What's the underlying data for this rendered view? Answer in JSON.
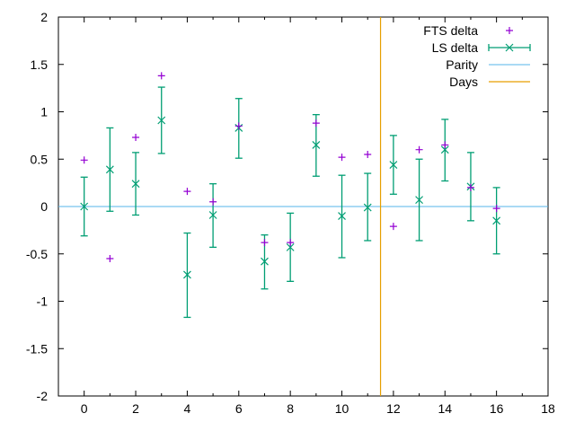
{
  "chart_data": {
    "type": "scatter",
    "title": "",
    "xlabel": "",
    "ylabel": "",
    "xlim": [
      -1,
      18
    ],
    "ylim": [
      -2,
      2
    ],
    "xticks": [
      0,
      2,
      4,
      6,
      8,
      10,
      12,
      14,
      16,
      18
    ],
    "yticks": [
      -2,
      -1.5,
      -1,
      -0.5,
      0,
      0.5,
      1,
      1.5,
      2
    ],
    "grid": false,
    "legend_position": "top-right",
    "series": [
      {
        "name": "FTS delta",
        "style": "points",
        "marker": "plus",
        "color": "#9400d3",
        "x": [
          0,
          1,
          2,
          3,
          4,
          5,
          6,
          7,
          8,
          9,
          10,
          11,
          12,
          13,
          14,
          15,
          16
        ],
        "y": [
          0.49,
          -0.55,
          0.73,
          1.38,
          0.16,
          0.05,
          0.85,
          -0.38,
          -0.38,
          0.88,
          0.52,
          0.55,
          -0.21,
          0.6,
          0.65,
          0.2,
          -0.02
        ]
      },
      {
        "name": "LS delta",
        "style": "errorbars",
        "marker": "cross",
        "color": "#009e73",
        "x": [
          0,
          1,
          2,
          3,
          4,
          5,
          6,
          7,
          8,
          9,
          10,
          11,
          12,
          13,
          14,
          15,
          16
        ],
        "y": [
          0.0,
          0.39,
          0.24,
          0.91,
          -0.72,
          -0.09,
          0.83,
          -0.58,
          -0.43,
          0.65,
          -0.1,
          -0.01,
          0.44,
          0.07,
          0.6,
          0.21,
          -0.15
        ],
        "ylow": [
          -0.31,
          -0.05,
          -0.09,
          0.56,
          -1.17,
          -0.43,
          0.51,
          -0.87,
          -0.79,
          0.32,
          -0.54,
          -0.36,
          0.13,
          -0.36,
          0.27,
          -0.15,
          -0.5
        ],
        "yhigh": [
          0.31,
          0.83,
          0.57,
          1.26,
          -0.28,
          0.24,
          1.14,
          -0.3,
          -0.07,
          0.97,
          0.33,
          0.35,
          0.75,
          0.5,
          0.92,
          0.57,
          0.2
        ]
      },
      {
        "name": "Parity",
        "style": "hline",
        "color": "#56b4e9",
        "y": 0
      },
      {
        "name": "Days",
        "style": "vline",
        "color": "#e69f00",
        "x": 11.5
      }
    ]
  }
}
